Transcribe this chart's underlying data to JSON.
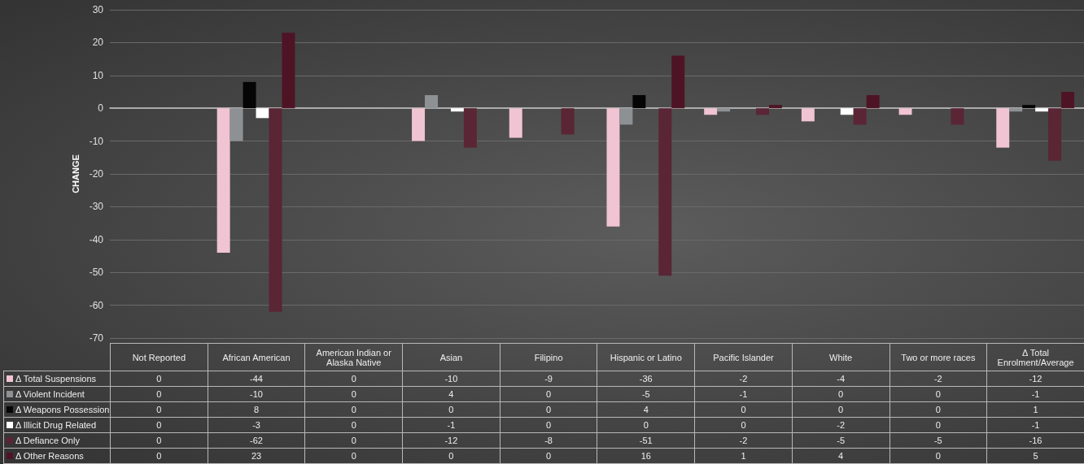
{
  "chart_data": {
    "type": "bar",
    "ylabel": "CHANGE",
    "categories": [
      "Not Reported",
      "African American",
      "American Indian or Alaska Native",
      "Asian",
      "Filipino",
      "Hispanic or Latino",
      "Pacific Islander",
      "White",
      "Two or more races",
      "Δ Total Enrolment/Average"
    ],
    "series": [
      {
        "name": "Δ Total Suspensions",
        "color": "#f0c4d2",
        "values": [
          0,
          -44,
          0,
          -10,
          -9,
          -36,
          -2,
          -4,
          -2,
          -12
        ]
      },
      {
        "name": "Δ Violent Incident",
        "color": "#8e9194",
        "values": [
          0,
          -10,
          0,
          4,
          0,
          -5,
          -1,
          0,
          0,
          -1
        ]
      },
      {
        "name": "Δ Weapons Possession",
        "color": "#050505",
        "values": [
          0,
          8,
          0,
          0,
          0,
          4,
          0,
          0,
          0,
          1
        ]
      },
      {
        "name": "Δ Illicit Drug Related",
        "color": "#ffffff",
        "values": [
          0,
          -3,
          0,
          -1,
          0,
          0,
          0,
          -2,
          0,
          -1
        ]
      },
      {
        "name": "Δ Defiance Only",
        "color": "#5a2535",
        "values": [
          0,
          -62,
          0,
          -12,
          -8,
          -51,
          -2,
          -5,
          -5,
          -16
        ]
      },
      {
        "name": "Δ Other Reasons",
        "color": "#4e1426",
        "values": [
          0,
          23,
          0,
          0,
          0,
          16,
          1,
          4,
          0,
          5
        ]
      }
    ],
    "ylim": [
      -70,
      30
    ],
    "yticks": [
      -70,
      -60,
      -50,
      -40,
      -30,
      -20,
      -10,
      0,
      10,
      20,
      30
    ],
    "grid": "y",
    "legend": "bottom left",
    "tick_labels": "y",
    "data_labels": true
  }
}
